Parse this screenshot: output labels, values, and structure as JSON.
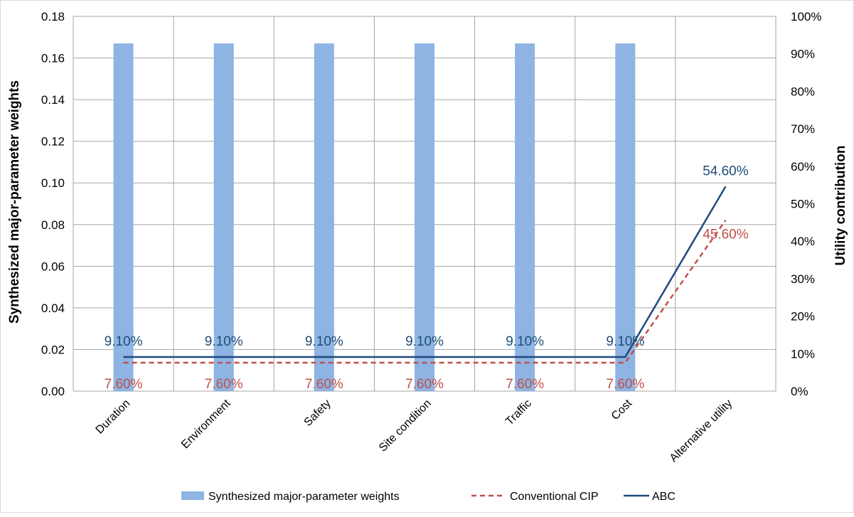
{
  "chart_data": {
    "type": "bar",
    "categories": [
      "Duration",
      "Environment",
      "Safety",
      "Site condition",
      "Traffic",
      "Cost",
      "Alternative utility"
    ],
    "left_axis": {
      "label": "Synthesized major-parameter weights",
      "range": [
        0,
        0.18
      ],
      "ticks": [
        "0.00",
        "0.02",
        "0.04",
        "0.06",
        "0.08",
        "0.10",
        "0.12",
        "0.14",
        "0.16",
        "0.18"
      ]
    },
    "right_axis": {
      "label": "Utility  contribution",
      "range": [
        0,
        100
      ],
      "ticks": [
        "0%",
        "10%",
        "20%",
        "30%",
        "40%",
        "50%",
        "60%",
        "70%",
        "80%",
        "90%",
        "100%"
      ]
    },
    "series": [
      {
        "name": "Synthesized major-parameter weights",
        "kind": "bar",
        "axis": "left",
        "color": "#8db4e2",
        "values": [
          0.167,
          0.167,
          0.167,
          0.167,
          0.167,
          0.167,
          null
        ]
      },
      {
        "name": "Conventional CIP",
        "kind": "line",
        "axis": "right",
        "color": "#c0504d",
        "dashed": true,
        "values": [
          7.6,
          7.6,
          7.6,
          7.6,
          7.6,
          7.6,
          45.6
        ],
        "data_labels": [
          "7.60%",
          "7.60%",
          "7.60%",
          "7.60%",
          "7.60%",
          "7.60%",
          "45.60%"
        ]
      },
      {
        "name": "ABC",
        "kind": "line",
        "axis": "right",
        "color": "#1f497d",
        "dashed": false,
        "values": [
          9.1,
          9.1,
          9.1,
          9.1,
          9.1,
          9.1,
          54.6
        ],
        "data_labels": [
          "9.10%",
          "9.10%",
          "9.10%",
          "9.10%",
          "9.10%",
          "9.10%",
          "54.60%"
        ]
      }
    ],
    "grid": true,
    "legend_position": "bottom",
    "colors": {
      "bar": "#8db4e2",
      "cip_label": "#c0504d",
      "abc_label": "#1f4e79",
      "grid": "#a6a6a6"
    }
  }
}
